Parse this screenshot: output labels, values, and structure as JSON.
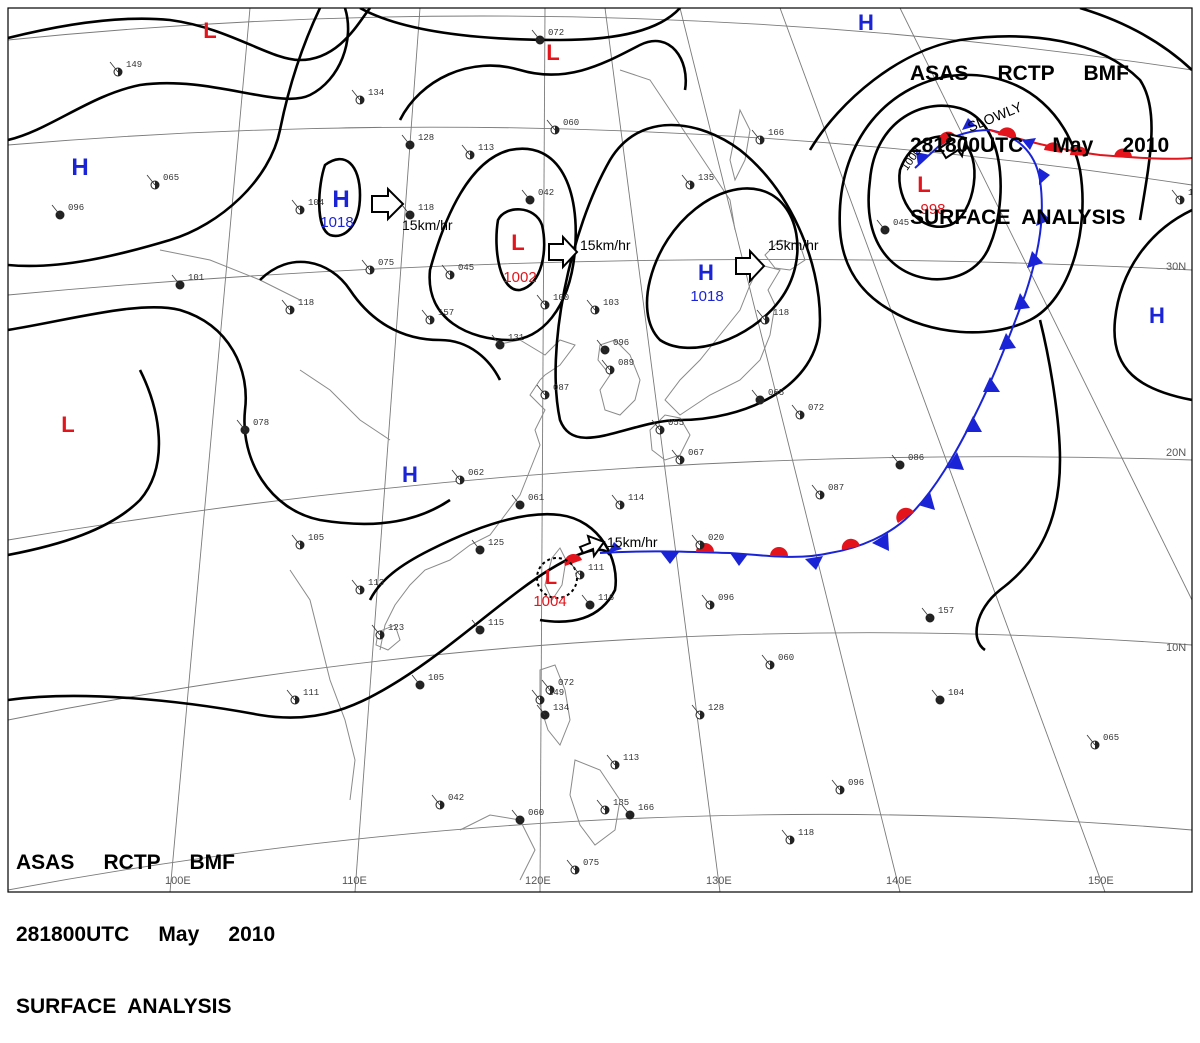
{
  "header_top": {
    "line1": "ASAS     RCTP     BMF",
    "line2": "281800UTC     May     2010",
    "line3": "SURFACE  ANALYSIS"
  },
  "header_bottom": {
    "line1": "ASAS     RCTP     BMF",
    "line2": "281800UTC     May     2010",
    "line3": "SURFACE  ANALYSIS"
  },
  "longitude_labels": [
    "100E",
    "110E",
    "120E",
    "130E",
    "140E",
    "150E"
  ],
  "latitude_labels": [
    "30N",
    "20N",
    "10N"
  ],
  "pressure_systems": [
    {
      "type": "H",
      "pressure": "1018",
      "color": "#1a24d6"
    },
    {
      "type": "L",
      "pressure": "1002",
      "color": "#e3141b"
    },
    {
      "type": "H",
      "pressure": "1018",
      "color": "#1a24d6"
    },
    {
      "type": "L",
      "pressure": "998",
      "color": "#e3141b"
    },
    {
      "type": "L",
      "pressure": "1004",
      "color": "#e3141b"
    },
    {
      "type": "H",
      "pressure": "",
      "color": "#1a24d6"
    },
    {
      "type": "H",
      "pressure": "",
      "color": "#1a24d6"
    },
    {
      "type": "H",
      "pressure": "",
      "color": "#1a24d6"
    },
    {
      "type": "L",
      "pressure": "",
      "color": "#e3141b"
    },
    {
      "type": "L",
      "pressure": "",
      "color": "#e3141b"
    },
    {
      "type": "L",
      "pressure": "",
      "color": "#e3141b"
    },
    {
      "type": "H",
      "pressure": "",
      "color": "#1a24d6"
    }
  ],
  "movement_labels": [
    "15km/hr",
    "15km/hr",
    "15km/hr",
    "SLOWLY",
    "15km/hr"
  ],
  "isobar_labels": [
    "1000"
  ],
  "station_values": [
    "072",
    "149",
    "134",
    "128",
    "113",
    "060",
    "042",
    "135",
    "166",
    "096",
    "065",
    "104",
    "118",
    "075",
    "045",
    "101",
    "118",
    "157",
    "131",
    "100",
    "103",
    "096",
    "089",
    "087",
    "078",
    "055",
    "067",
    "065",
    "072",
    "062",
    "061",
    "114",
    "105",
    "125",
    "020",
    "111",
    "116",
    "113",
    "123",
    "115",
    "096",
    "087",
    "086",
    "060",
    "111",
    "105"
  ],
  "colors": {
    "high": "#1a24d6",
    "low": "#e3141b",
    "cold_front": "#1a24d6",
    "warm_front": "#e3141b",
    "isobar": "#000000",
    "coastline": "#8a8a8a",
    "graticule": "#7a7a7a"
  }
}
